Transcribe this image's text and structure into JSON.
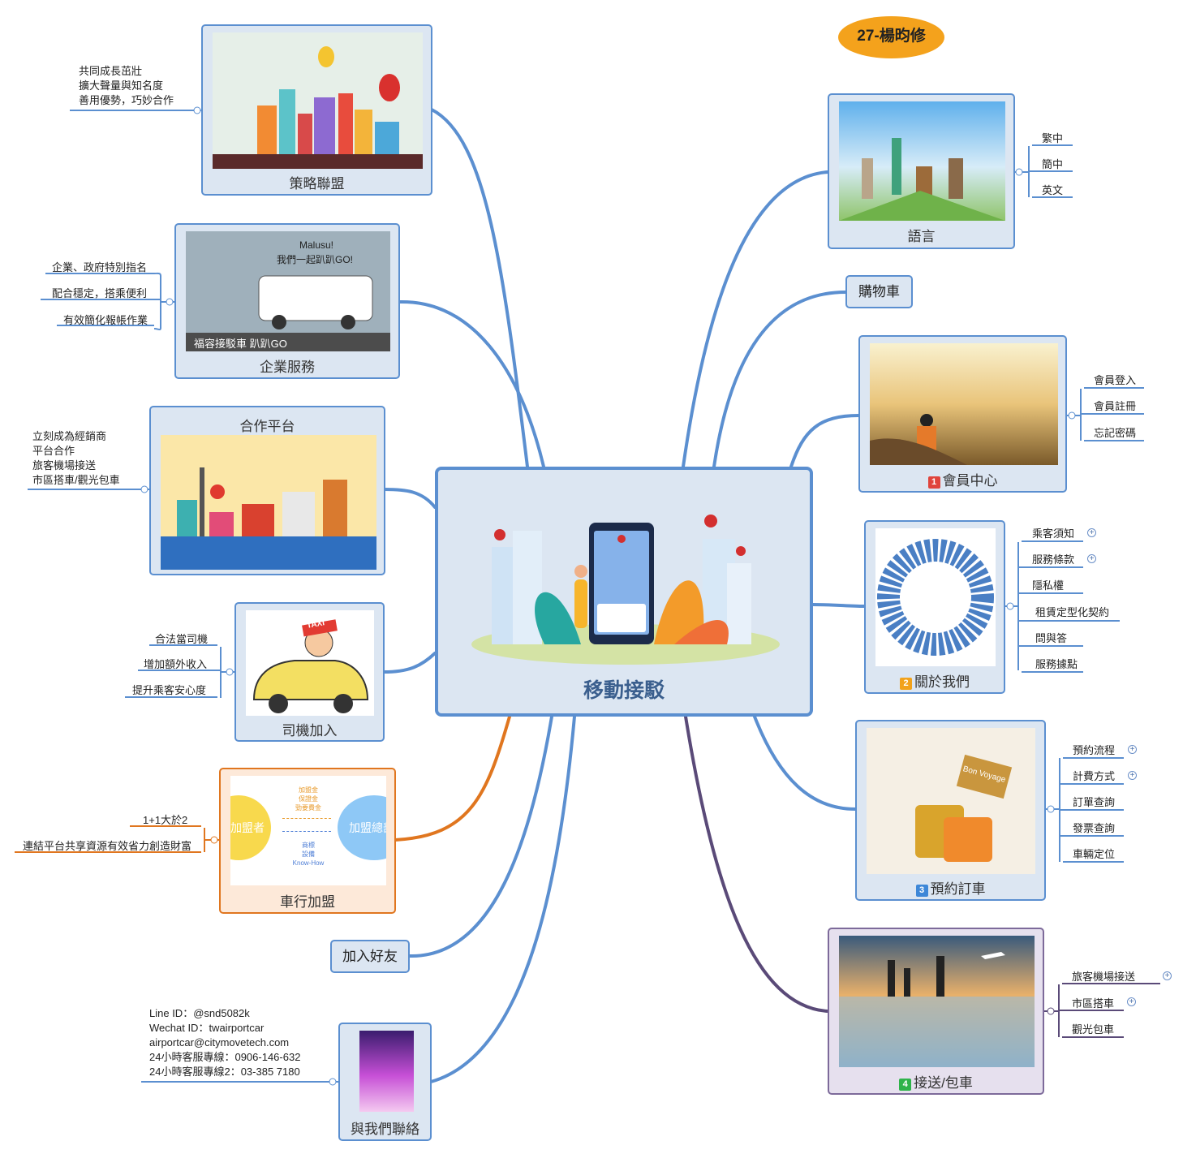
{
  "central": {
    "title": "移動接駁"
  },
  "tag": "27-楊昀修",
  "topics": {
    "alliance": {
      "label": "策略聯盟",
      "leaves": [
        "共同成長茁壯",
        "擴大聲量與知名度",
        "善用優勢，巧妙合作"
      ]
    },
    "enterprise": {
      "label": "企業服務",
      "image_caption": "福容接駁車 趴趴GO",
      "image_banner": "Malusu!",
      "image_banner2": "我們一起趴趴GO!",
      "leaves": [
        "企業、政府特別指名",
        "配合穩定，搭乘便利",
        "有效簡化報帳作業"
      ]
    },
    "platform": {
      "label": "合作平台",
      "leaves": [
        "立刻成為經銷商",
        "平台合作",
        "旅客機場接送",
        "市區搭車/觀光包車"
      ]
    },
    "driver": {
      "label": "司機加入",
      "taxi": "TAXI",
      "leaves": [
        "合法當司機",
        "增加額外收入",
        "提升乘客安心度"
      ]
    },
    "franchise": {
      "label": "車行加盟",
      "left_circle": "加盟者",
      "right_circle": "加盟總部",
      "top_terms": [
        "加盟金",
        "保證金",
        "勁要費金"
      ],
      "bottom_terms": [
        "商標",
        "設備",
        "Know-How"
      ],
      "leaves": [
        "1+1大於2",
        "連結平台共享資源有效省力創造財富"
      ]
    },
    "friends": {
      "label": "加入好友"
    },
    "contact": {
      "label": "與我們聯絡",
      "lines": [
        "Line ID：@snd5082k",
        "Wechat ID：twairportcar",
        "airportcar@citymovetech.com",
        "24小時客服專線：0906-146-632",
        "24小時客服專線2：03-385 7180"
      ]
    },
    "language": {
      "label": "語言",
      "leaves": [
        "繁中",
        "簡中",
        "英文"
      ]
    },
    "cart": {
      "label": "購物車"
    },
    "member": {
      "label": "會員中心",
      "badge": "1",
      "leaves": [
        "會員登入",
        "會員註冊",
        "忘記密碼"
      ]
    },
    "about": {
      "label": "關於我們",
      "badge": "2",
      "leaves": [
        "乘客須知",
        "服務條款",
        "隱私權",
        "租賃定型化契約",
        "問與答",
        "服務據點"
      ]
    },
    "booking": {
      "label": "預約訂車",
      "badge": "3",
      "sign": "Bon Voyage",
      "leaves": [
        "預約流程",
        "計費方式",
        "訂單查詢",
        "發票查詢",
        "車輛定位"
      ]
    },
    "transfer": {
      "label": "接送/包車",
      "badge": "4",
      "leaves": [
        "旅客機場接送",
        "市區搭車",
        "觀光包車"
      ]
    }
  },
  "colors": {
    "branch": "#5b8fd0",
    "orange": "#e0761f",
    "purple": "#5a4a78",
    "badge1": "#e0443c",
    "badge2": "#f2a21b",
    "badge3": "#3d87d8",
    "badge4": "#2eb34a"
  }
}
